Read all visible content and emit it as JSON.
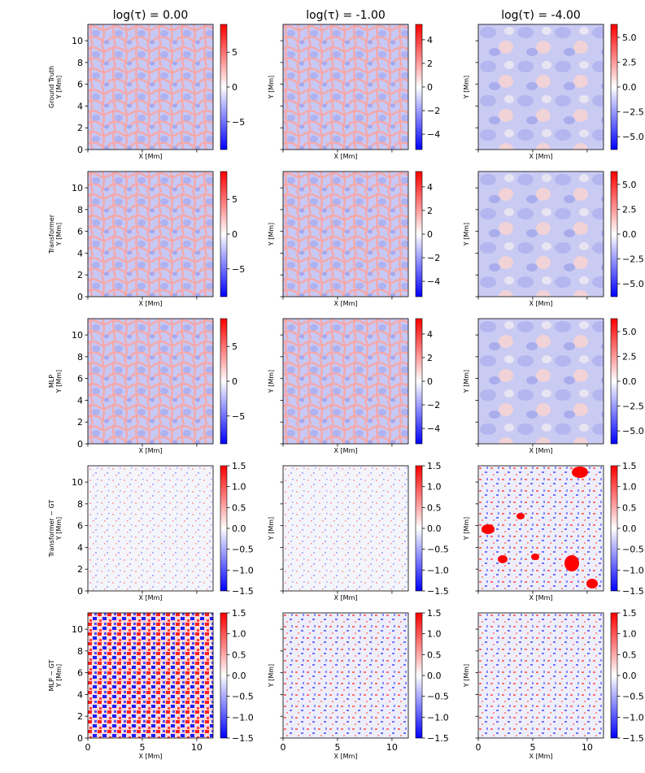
{
  "chart_data": {
    "type": "heatmap",
    "layout": "5 rows x 3 columns grid of heatmap panels with individual colorbars",
    "colormap": "bwr",
    "colormap_colors": {
      "low": "#0000ff",
      "mid": "#ffffff",
      "high": "#ff0000"
    },
    "columns": [
      {
        "title": "log(τ) = 0.00"
      },
      {
        "title": "log(τ) = -1.00"
      },
      {
        "title": "log(τ) = -4.00"
      }
    ],
    "rows": [
      {
        "label_lines": [
          "Ground Truth",
          "Y [Mm]"
        ],
        "kind": "value"
      },
      {
        "label_lines": [
          "Transformer",
          "Y [Mm]"
        ],
        "kind": "value"
      },
      {
        "label_lines": [
          "MLP",
          "Y [Mm]"
        ],
        "kind": "value"
      },
      {
        "label_lines": [
          "Transformer − GT",
          "Y [Mm]"
        ],
        "kind": "diff"
      },
      {
        "label_lines": [
          "MLP − GT",
          "Y [Mm]"
        ],
        "kind": "diff"
      }
    ],
    "ylabel_other": "Y [Mm]",
    "xlabel": "X [Mm]",
    "x_range": [
      0,
      11.5
    ],
    "y_range": [
      0,
      11.5
    ],
    "x_ticks": [
      0,
      5,
      10
    ],
    "x_tick_labels": [
      "0",
      "5",
      "10"
    ],
    "y_ticks": [
      0,
      2,
      4,
      6,
      8,
      10
    ],
    "y_tick_labels": [
      "0",
      "2",
      "4",
      "6",
      "8",
      "10"
    ],
    "colorbars": {
      "value_col0": {
        "range": [
          -9,
          9
        ],
        "ticks": [
          -5,
          0,
          5
        ],
        "tick_labels": [
          "−5",
          "0",
          "5"
        ]
      },
      "value_col1": {
        "range": [
          -5.3,
          5.3
        ],
        "ticks": [
          -4,
          -2,
          0,
          2,
          4
        ],
        "tick_labels": [
          "−4",
          "−2",
          "0",
          "2",
          "4"
        ]
      },
      "value_col2": {
        "range": [
          -6.3,
          6.3
        ],
        "ticks": [
          -5,
          -2.5,
          0,
          2.5,
          5
        ],
        "tick_labels": [
          "−5.0",
          "−2.5",
          "0.0",
          "2.5",
          "5.0"
        ]
      },
      "diff": {
        "range": [
          -1.5,
          1.5
        ],
        "ticks": [
          -1.5,
          -1,
          -0.5,
          0,
          0.5,
          1,
          1.5
        ],
        "tick_labels": [
          "−1.5",
          "−1.0",
          "−0.5",
          "0.0",
          "0.5",
          "1.0",
          "1.5"
        ]
      }
    },
    "field_description": "solar granulation velocity field; value panels show cellular pattern with red intergranular lanes and blue granule interiors; difference panels show speckled residuals (Transformer small, MLP large at log(τ)=0.00)"
  }
}
